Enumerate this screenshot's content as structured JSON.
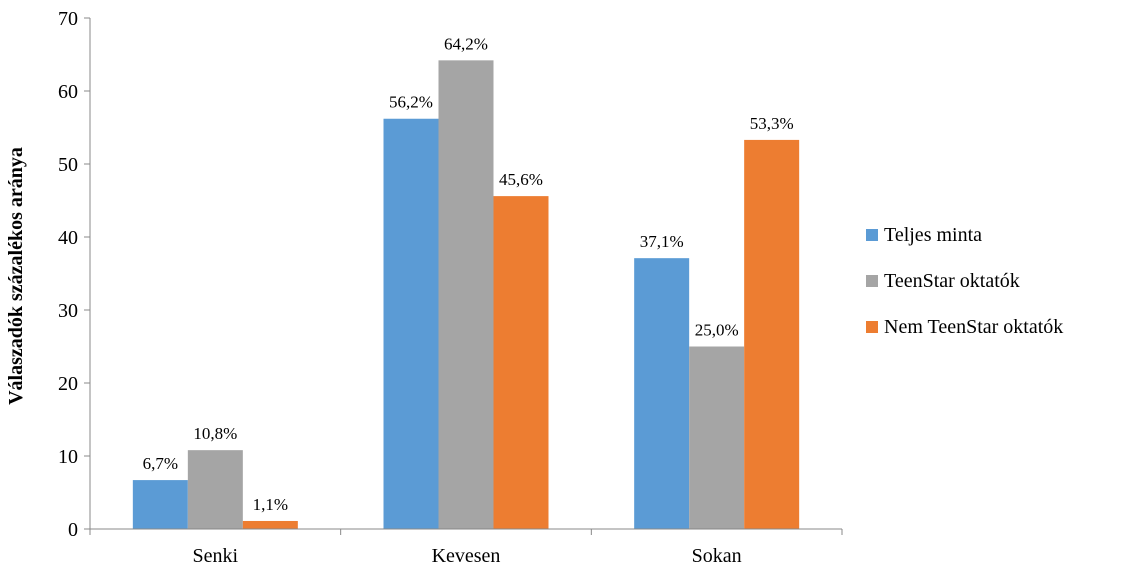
{
  "chart_data": {
    "type": "bar",
    "title": "",
    "xlabel": "",
    "ylabel": "Válaszadók százalékos aránya",
    "ylim": [
      0,
      70
    ],
    "yticks": [
      0,
      10,
      20,
      30,
      40,
      50,
      60,
      70
    ],
    "grid": false,
    "legend_position": "right",
    "categories": [
      "Senki",
      "Kevesen",
      "Sokan"
    ],
    "series": [
      {
        "name": "Teljes minta",
        "color": "#5B9BD5",
        "values": [
          6.7,
          56.2,
          37.1
        ],
        "labels": [
          "6,7%",
          "56,2%",
          "37,1%"
        ]
      },
      {
        "name": "TeenStar oktatók",
        "color": "#A5A5A5",
        "values": [
          10.8,
          64.2,
          25.0
        ],
        "labels": [
          "10,8%",
          "64,2%",
          "25,0%"
        ]
      },
      {
        "name": "Nem TeenStar oktatók",
        "color": "#ED7D31",
        "values": [
          1.1,
          45.6,
          53.3
        ],
        "labels": [
          "1,1%",
          "45,6%",
          "53,3%"
        ]
      }
    ]
  }
}
